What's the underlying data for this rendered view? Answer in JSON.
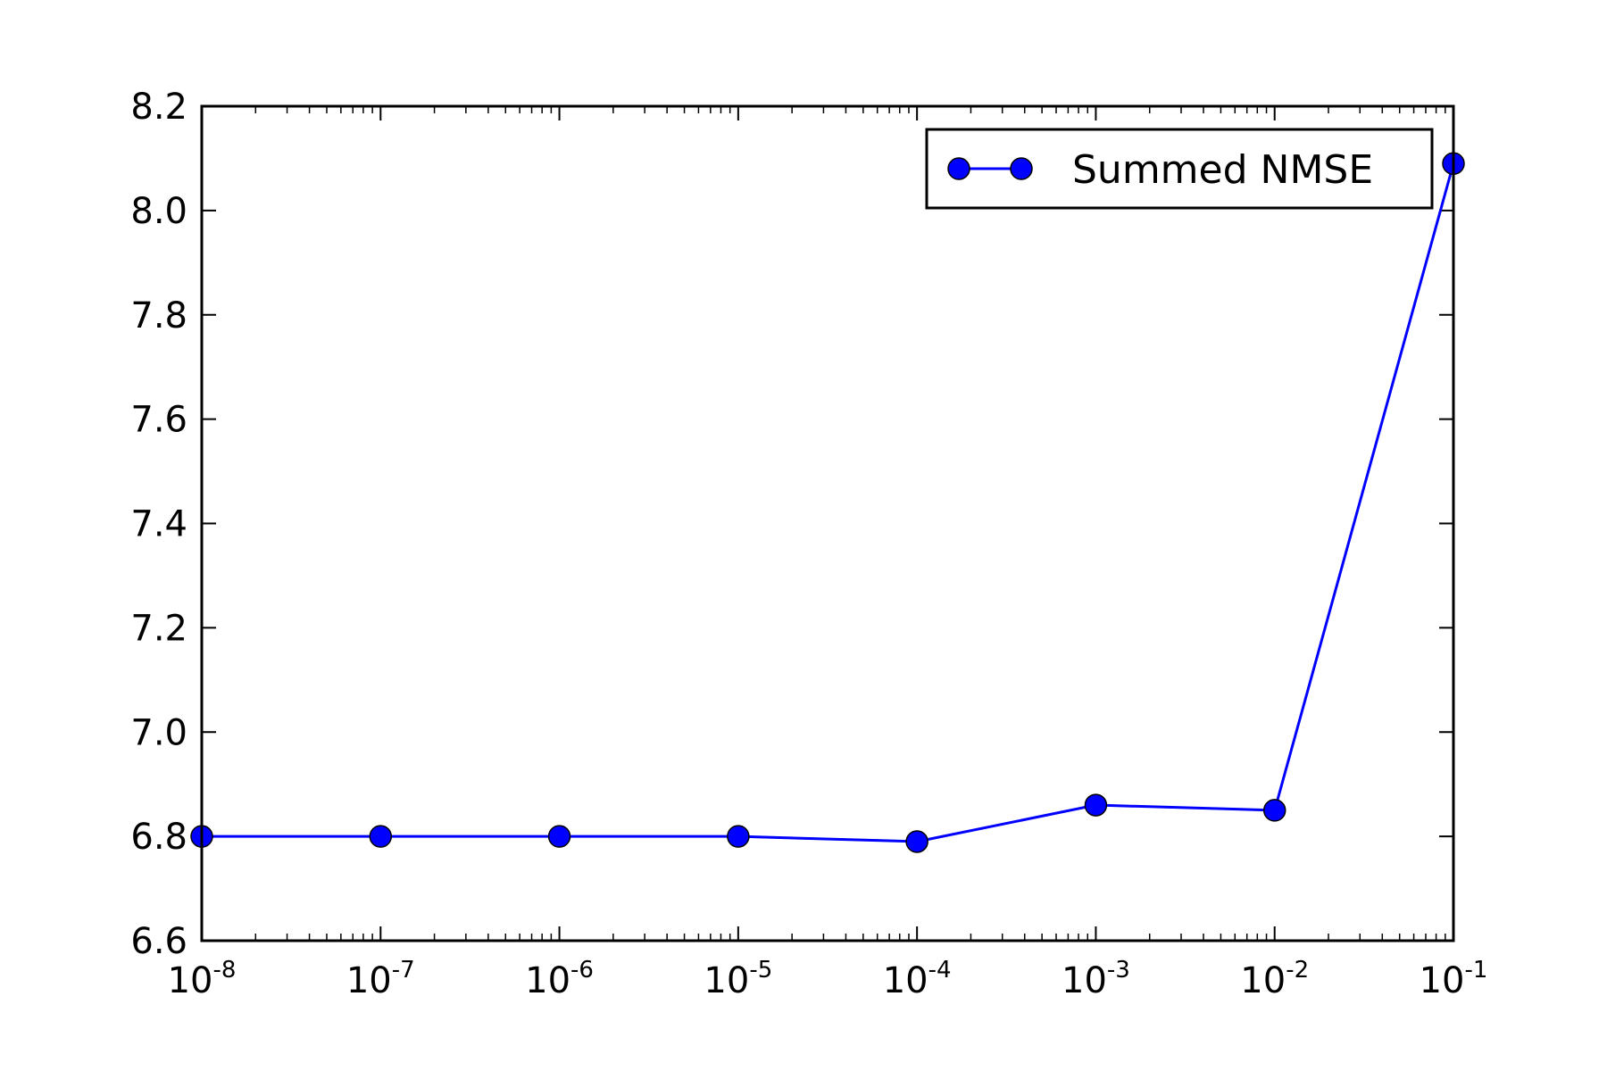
{
  "chart_data": {
    "type": "line",
    "title": "",
    "xlabel": "",
    "ylabel": "",
    "x_scale": "log",
    "xlim": [
      1e-08,
      0.1
    ],
    "ylim": [
      6.6,
      8.2
    ],
    "x": [
      1e-08,
      1e-07,
      1e-06,
      1e-05,
      0.0001,
      0.001,
      0.01,
      0.1
    ],
    "x_tick_labels": [
      {
        "base": "10",
        "exp": "-8"
      },
      {
        "base": "10",
        "exp": "-7"
      },
      {
        "base": "10",
        "exp": "-6"
      },
      {
        "base": "10",
        "exp": "-5"
      },
      {
        "base": "10",
        "exp": "-4"
      },
      {
        "base": "10",
        "exp": "-3"
      },
      {
        "base": "10",
        "exp": "-2"
      },
      {
        "base": "10",
        "exp": "-1"
      }
    ],
    "y_ticks": [
      "6.6",
      "6.8",
      "7.0",
      "7.2",
      "7.4",
      "7.6",
      "7.8",
      "8.0",
      "8.2"
    ],
    "grid": false,
    "legend_position": "top-right",
    "series": [
      {
        "name": "Summed NMSE",
        "color": "#0000ff",
        "marker": "circle",
        "values": [
          6.8,
          6.8,
          6.8,
          6.8,
          6.79,
          6.86,
          6.85,
          8.09
        ]
      }
    ]
  }
}
